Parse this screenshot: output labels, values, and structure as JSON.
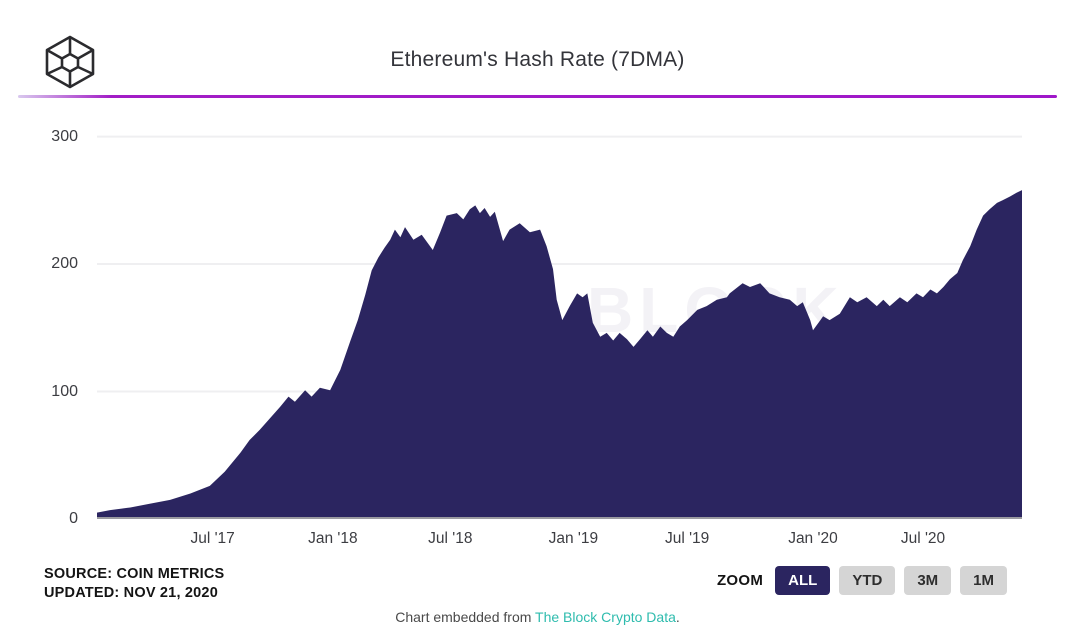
{
  "header": {
    "title": "Ethereum's Hash Rate (7DMA)",
    "logo_name": "the-block-cube-logo"
  },
  "colors": {
    "divider_purple": "#a21dc6",
    "area_navy": "#2b2560",
    "gridline": "#efeff1",
    "axis_line": "#9a9aa0",
    "link_teal": "#2fbcae",
    "watermark": "#f3f2f6"
  },
  "chart_data": {
    "type": "area",
    "title": "Ethereum's Hash Rate (7DMA)",
    "xlabel": "",
    "ylabel": "",
    "ylim": [
      0,
      313
    ],
    "y_ticks": [
      0,
      100,
      200,
      300
    ],
    "x_ticks": [
      {
        "label": "Jul '17",
        "pos": 0.125
      },
      {
        "label": "Jan '18",
        "pos": 0.255
      },
      {
        "label": "Jul '18",
        "pos": 0.382
      },
      {
        "label": "Jan '19",
        "pos": 0.515
      },
      {
        "label": "Jul '19",
        "pos": 0.638
      },
      {
        "label": "Jan '20",
        "pos": 0.774
      },
      {
        "label": "Jul '20",
        "pos": 0.893
      }
    ],
    "grid": true,
    "legend": false,
    "watermark": "BLOCK",
    "series_name": "Ethereum hash rate (7-day moving average)",
    "points": [
      [
        0.0,
        5
      ],
      [
        0.014,
        7
      ],
      [
        0.036,
        9
      ],
      [
        0.057,
        12
      ],
      [
        0.079,
        15
      ],
      [
        0.101,
        20
      ],
      [
        0.122,
        26
      ],
      [
        0.138,
        37
      ],
      [
        0.155,
        52
      ],
      [
        0.165,
        62
      ],
      [
        0.176,
        70
      ],
      [
        0.187,
        79
      ],
      [
        0.198,
        88
      ],
      [
        0.207,
        96
      ],
      [
        0.214,
        92
      ],
      [
        0.225,
        101
      ],
      [
        0.232,
        96
      ],
      [
        0.241,
        103
      ],
      [
        0.252,
        101
      ],
      [
        0.263,
        117
      ],
      [
        0.274,
        140
      ],
      [
        0.282,
        156
      ],
      [
        0.29,
        176
      ],
      [
        0.297,
        195
      ],
      [
        0.304,
        205
      ],
      [
        0.311,
        213
      ],
      [
        0.317,
        219
      ],
      [
        0.322,
        227
      ],
      [
        0.328,
        221
      ],
      [
        0.333,
        229
      ],
      [
        0.342,
        219
      ],
      [
        0.351,
        223
      ],
      [
        0.363,
        211
      ],
      [
        0.371,
        225
      ],
      [
        0.378,
        238
      ],
      [
        0.389,
        240
      ],
      [
        0.396,
        235
      ],
      [
        0.403,
        243
      ],
      [
        0.409,
        246
      ],
      [
        0.414,
        240
      ],
      [
        0.419,
        244
      ],
      [
        0.425,
        237
      ],
      [
        0.43,
        241
      ],
      [
        0.439,
        218
      ],
      [
        0.446,
        227
      ],
      [
        0.457,
        232
      ],
      [
        0.468,
        225
      ],
      [
        0.479,
        227
      ],
      [
        0.486,
        214
      ],
      [
        0.493,
        196
      ],
      [
        0.497,
        172
      ],
      [
        0.503,
        156
      ],
      [
        0.511,
        167
      ],
      [
        0.519,
        177
      ],
      [
        0.525,
        174
      ],
      [
        0.53,
        177
      ],
      [
        0.536,
        154
      ],
      [
        0.544,
        143
      ],
      [
        0.551,
        146
      ],
      [
        0.558,
        140
      ],
      [
        0.565,
        146
      ],
      [
        0.573,
        141
      ],
      [
        0.58,
        135
      ],
      [
        0.587,
        141
      ],
      [
        0.595,
        148
      ],
      [
        0.601,
        143
      ],
      [
        0.609,
        151
      ],
      [
        0.616,
        146
      ],
      [
        0.623,
        143
      ],
      [
        0.63,
        151
      ],
      [
        0.638,
        156
      ],
      [
        0.649,
        164
      ],
      [
        0.659,
        167
      ],
      [
        0.67,
        172
      ],
      [
        0.681,
        174
      ],
      [
        0.684,
        177
      ],
      [
        0.698,
        185
      ],
      [
        0.706,
        182
      ],
      [
        0.717,
        185
      ],
      [
        0.727,
        177
      ],
      [
        0.738,
        174
      ],
      [
        0.749,
        172
      ],
      [
        0.757,
        167
      ],
      [
        0.763,
        170
      ],
      [
        0.771,
        156
      ],
      [
        0.774,
        148
      ],
      [
        0.782,
        156
      ],
      [
        0.785,
        159
      ],
      [
        0.792,
        156
      ],
      [
        0.803,
        161
      ],
      [
        0.814,
        174
      ],
      [
        0.822,
        170
      ],
      [
        0.832,
        174
      ],
      [
        0.843,
        167
      ],
      [
        0.85,
        172
      ],
      [
        0.857,
        167
      ],
      [
        0.868,
        174
      ],
      [
        0.876,
        170
      ],
      [
        0.886,
        177
      ],
      [
        0.893,
        174
      ],
      [
        0.901,
        180
      ],
      [
        0.908,
        177
      ],
      [
        0.915,
        182
      ],
      [
        0.922,
        188
      ],
      [
        0.93,
        193
      ],
      [
        0.936,
        203
      ],
      [
        0.944,
        214
      ],
      [
        0.951,
        227
      ],
      [
        0.958,
        238
      ],
      [
        0.965,
        243
      ],
      [
        0.973,
        248
      ],
      [
        0.979,
        250
      ],
      [
        0.987,
        253
      ],
      [
        0.994,
        256
      ],
      [
        1.0,
        258
      ]
    ]
  },
  "source": {
    "line1": "SOURCE: COIN METRICS",
    "line2": "UPDATED: NOV 21, 2020"
  },
  "zoom_controls": {
    "label": "ZOOM",
    "buttons": [
      {
        "label": "ALL",
        "active": true
      },
      {
        "label": "YTD",
        "active": false
      },
      {
        "label": "3M",
        "active": false
      },
      {
        "label": "1M",
        "active": false
      }
    ]
  },
  "footer": {
    "prefix": "Chart embedded from ",
    "link": "The Block Crypto Data",
    "suffix": "."
  }
}
